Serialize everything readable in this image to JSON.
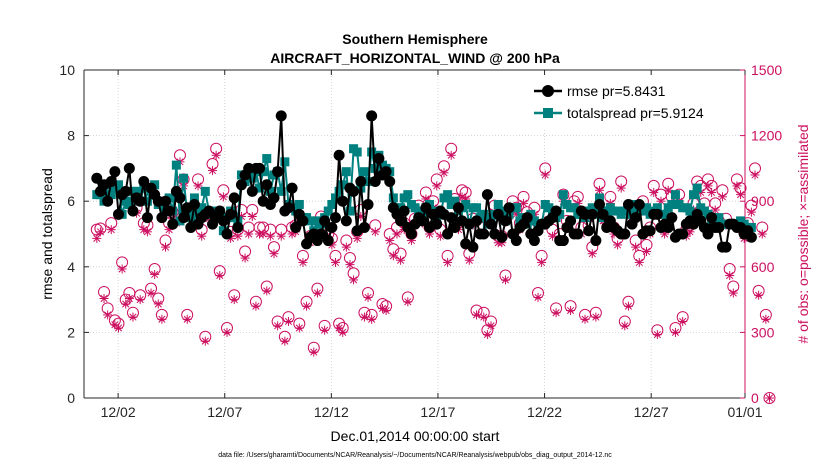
{
  "chart_data": {
    "type": "line",
    "title": "Southern Hemisphere",
    "subtitle": "AIRCRAFT_HORIZONTAL_WIND @ 200 hPa",
    "xlabel": "Dec.01,2014 00:00:00 start",
    "ylabel_left": "rmse and totalspread",
    "ylabel_right": "# of obs: o=possible; ×=assimilated",
    "xlim": [
      0.4,
      31.4
    ],
    "ylim_left": [
      0,
      10
    ],
    "ylim_right": [
      0,
      1500
    ],
    "x_ticks": [
      {
        "x": 2,
        "label": "12/02"
      },
      {
        "x": 7,
        "label": "12/07"
      },
      {
        "x": 12,
        "label": "12/12"
      },
      {
        "x": 17,
        "label": "12/17"
      },
      {
        "x": 22,
        "label": "12/22"
      },
      {
        "x": 27,
        "label": "12/27"
      },
      {
        "x": 32,
        "label": "01/01"
      }
    ],
    "y_ticks_left": [
      0,
      2,
      4,
      6,
      8,
      10
    ],
    "y_ticks_right": [
      0,
      300,
      600,
      900,
      1200,
      1500
    ],
    "grid": true,
    "legend_position": "top-right",
    "colors": {
      "rmse": "#000000",
      "totalspread": "#00807f",
      "obs": "#cc1060"
    },
    "series": [
      {
        "name": "rmse pr=5.8431",
        "key": "rmse",
        "marker": "filled-circle",
        "values": [
          6.7,
          6.3,
          6.5,
          6.0,
          6.6,
          6.9,
          5.6,
          6.2,
          6.3,
          7.0,
          5.7,
          6.1,
          6.0,
          6.6,
          5.5,
          6.4,
          6.2,
          6.0,
          5.5,
          6.0,
          5.7,
          5.3,
          6.3,
          6.1,
          5.5,
          5.8,
          5.2,
          5.9,
          5.3,
          5.5,
          5.6,
          5.7,
          5.3,
          5.5,
          5.7,
          5.4,
          5.0,
          5.6,
          6.1,
          5.2,
          6.5,
          6.8,
          7.0,
          6.3,
          7.0,
          7.0,
          6.0,
          6.5,
          5.9,
          6.1,
          6.9,
          8.6,
          5.7,
          5.8,
          6.4,
          5.2,
          5.6,
          5.4,
          4.7,
          4.9,
          5.0,
          4.8,
          5.0,
          5.4,
          4.8,
          5.2,
          5.5,
          7.4,
          6.0,
          5.4,
          6.4,
          6.3,
          5.1,
          6.6,
          5.2,
          5.9,
          8.6,
          6.6,
          7.3,
          6.8,
          6.9,
          6.6,
          5.8,
          5.6,
          5.4,
          5.7,
          5.2,
          5.0,
          5.3,
          5.5,
          5.4,
          5.8,
          5.2,
          5.6,
          5.3,
          5.7,
          5.6,
          5.0,
          5.5,
          5.2,
          5.8,
          5.4,
          4.7,
          5.3,
          4.6,
          5.4,
          5.0,
          5.0,
          6.2,
          5.3,
          5.0,
          5.6,
          4.9,
          5.4,
          5.8,
          5.0,
          4.8,
          5.2,
          5.3,
          5.5,
          5.0,
          4.8,
          5.1,
          5.3,
          5.3,
          5.4,
          5.5,
          5.7,
          4.8,
          4.8,
          5.2,
          5.4,
          5.0,
          5.0,
          5.7,
          5.6,
          5.1,
          5.6,
          4.8,
          5.9,
          5.6,
          5.2,
          5.4,
          5.2,
          5.1,
          5.0,
          5.0,
          5.9,
          5.3,
          5.5,
          5.9,
          5.0,
          5.1,
          5.1,
          5.6,
          5.6,
          5.2,
          5.3,
          5.2,
          5.5,
          4.9,
          5.0,
          5.0,
          5.3,
          5.4,
          5.3,
          5.6,
          5.4,
          5.2,
          5.0,
          5.5,
          5.2,
          5.2,
          4.6,
          4.6,
          5.3,
          5.3,
          5.2,
          5.2,
          5.0,
          5.1,
          4.9
        ]
      },
      {
        "name": "totalspread pr=5.9124",
        "key": "totalspread",
        "marker": "filled-square",
        "values": [
          6.2,
          6.2,
          6.0,
          6.5,
          6.2,
          6.4,
          6.5,
          5.6,
          6.0,
          5.9,
          6.3,
          6.3,
          6.0,
          6.4,
          6.0,
          6.3,
          6.5,
          5.9,
          5.9,
          5.7,
          6.1,
          5.7,
          7.1,
          5.4,
          6.7,
          5.6,
          5.5,
          6.1,
          5.6,
          5.8,
          6.3,
          5.7,
          5.6,
          5.7,
          5.7,
          5.1,
          5.5,
          5.7,
          5.5,
          5.4,
          6.8,
          6.6,
          6.9,
          6.7,
          6.9,
          6.4,
          6.9,
          7.3,
          6.3,
          6.8,
          6.9,
          6.3,
          7.2,
          5.9,
          5.8,
          5.7,
          5.9,
          5.5,
          5.5,
          5.4,
          5.1,
          5.4,
          5.3,
          5.5,
          5.7,
          5.9,
          6.1,
          6.3,
          6.5,
          6.9,
          5.7,
          7.6,
          7.5,
          6.4,
          6.9,
          6.6,
          7.5,
          7.0,
          7.4,
          7.1,
          7.0,
          6.9,
          6.1,
          5.8,
          5.8,
          6.1,
          6.2,
          5.9,
          5.8,
          5.7,
          5.5,
          5.8,
          5.9,
          5.7,
          5.5,
          5.6,
          6.1,
          6.2,
          5.9,
          6.0,
          5.7,
          5.8,
          5.9,
          5.3,
          5.8,
          5.8,
          5.5,
          5.6,
          5.3,
          5.5,
          5.6,
          5.9,
          5.7,
          5.4,
          5.6,
          5.8,
          5.8,
          5.4,
          5.5,
          5.3,
          5.6,
          5.4,
          5.3,
          5.3,
          5.9,
          5.8,
          5.7,
          5.5,
          5.6,
          6.2,
          5.9,
          5.8,
          5.8,
          5.6,
          5.6,
          5.5,
          5.7,
          5.8,
          5.6,
          6.1,
          5.5,
          5.7,
          5.8,
          5.7,
          5.7,
          5.6,
          5.7,
          5.8,
          5.6,
          5.9,
          5.7,
          5.7,
          5.8,
          5.6,
          5.7,
          5.8,
          5.6,
          5.6,
          5.8,
          5.9,
          6.2,
          5.9,
          5.8,
          5.8,
          5.7,
          6.2,
          6.4,
          5.8,
          5.7,
          5.6,
          5.4,
          5.4,
          5.5,
          5.3,
          5.3,
          5.3,
          5.3,
          5.3,
          5.4,
          5.3,
          5.2,
          5.2
        ]
      },
      {
        "name": "possible",
        "key": "possible",
        "marker": "open-circle",
        "values": [
          770,
          775,
          485,
          410,
          800,
          355,
          340,
          620,
          450,
          480,
          390,
          870,
          470,
          800,
          790,
          500,
          590,
          455,
          380,
          720,
          800,
          850,
          830,
          1110,
          1000,
          380,
          840,
          860,
          1000,
          770,
          280,
          850,
          1070,
          1140,
          580,
          950,
          320,
          760,
          470,
          770,
          860,
          670,
          780,
          860,
          440,
          780,
          780,
          510,
          770,
          690,
          350,
          770,
          280,
          370,
          780,
          790,
          340,
          650,
          440,
          740,
          230,
          500,
          830,
          330,
          750,
          730,
          650,
          340,
          320,
          720,
          640,
          570,
          760,
          860,
          390,
          480,
          380,
          790,
          1040,
          430,
          420,
          750,
          680,
          780,
          660,
          800,
          460,
          750,
          820,
          880,
          830,
          940,
          780,
          900,
          1000,
          770,
          1060,
          650,
          1140,
          910,
          800,
          950,
          940,
          660,
          820,
          400,
          780,
          390,
          310,
          350,
          880,
          740,
          740,
          560,
          860,
          900,
          870,
          800,
          920,
          850,
          830,
          870,
          480,
          650,
          1050,
          840,
          770,
          410,
          750,
          930,
          810,
          420,
          900,
          920,
          780,
          380,
          790,
          690,
          390,
          980,
          840,
          810,
          920,
          780,
          730,
          990,
          350,
          440,
          850,
          720,
          650,
          900,
          700,
          780,
          970,
          310,
          930,
          780,
          980,
          920,
          320,
          930,
          370,
          770,
          790,
          890,
          990,
          970,
          890,
          1000,
          970,
          890,
          810,
          950,
          820,
          590,
          510,
          1000,
          960,
          760,
          800,
          880,
          1050,
          490,
          780,
          380,
          0
        ]
      },
      {
        "name": "assimilated",
        "key": "assimilated",
        "marker": "x",
        "values": [
          730,
          760,
          455,
          380,
          770,
          335,
          320,
          590,
          430,
          455,
          370,
          845,
          450,
          770,
          760,
          480,
          565,
          430,
          360,
          690,
          770,
          820,
          800,
          1080,
          970,
          360,
          810,
          830,
          970,
          740,
          260,
          820,
          1040,
          1110,
          560,
          920,
          300,
          730,
          450,
          740,
          830,
          640,
          750,
          830,
          420,
          750,
          750,
          490,
          740,
          660,
          330,
          740,
          260,
          350,
          750,
          760,
          320,
          620,
          420,
          710,
          210,
          480,
          800,
          310,
          720,
          700,
          620,
          320,
          300,
          690,
          610,
          540,
          730,
          830,
          370,
          460,
          360,
          760,
          1010,
          410,
          400,
          720,
          650,
          750,
          630,
          770,
          440,
          720,
          790,
          850,
          800,
          910,
          750,
          870,
          970,
          740,
          1030,
          620,
          1110,
          880,
          770,
          920,
          910,
          630,
          790,
          380,
          750,
          370,
          290,
          330,
          850,
          710,
          710,
          540,
          830,
          870,
          840,
          770,
          890,
          820,
          800,
          840,
          460,
          620,
          1020,
          810,
          740,
          390,
          720,
          900,
          780,
          400,
          870,
          890,
          750,
          360,
          760,
          660,
          370,
          950,
          810,
          780,
          890,
          750,
          700,
          960,
          330,
          420,
          820,
          690,
          620,
          870,
          670,
          750,
          940,
          290,
          900,
          750,
          950,
          890,
          300,
          900,
          350,
          740,
          760,
          860,
          960,
          940,
          860,
          970,
          940,
          860,
          780,
          920,
          790,
          560,
          480,
          970,
          930,
          730,
          770,
          850,
          1020,
          470,
          750,
          360,
          0
        ]
      }
    ]
  }
}
